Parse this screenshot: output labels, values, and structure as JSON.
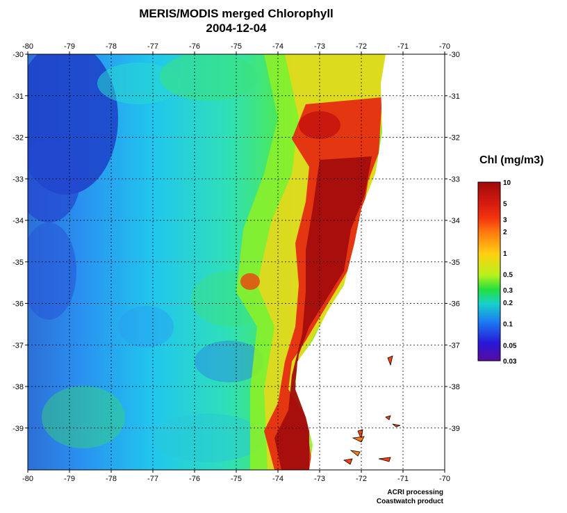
{
  "title": {
    "line1": "MERIS/MODIS merged Chlorophyll",
    "line2": "2004-12-04"
  },
  "map": {
    "lon_ticks": [
      "-80",
      "-79",
      "-78",
      "-77",
      "-76",
      "-75",
      "-74",
      "-73",
      "-72",
      "-71",
      "-70"
    ],
    "lat_ticks": [
      "-30",
      "-31",
      "-32",
      "-33",
      "-34",
      "-35",
      "-36",
      "-37",
      "-38",
      "-39"
    ],
    "lon_range": [
      -80,
      -70
    ],
    "lat_range": [
      -30,
      -40
    ],
    "grid": "dotted",
    "land_color": "#ffffff"
  },
  "colorbar": {
    "title": "Chl (mg/m3)",
    "labels": [
      "10",
      "5",
      "3",
      "2",
      "1",
      "0.5",
      "0.3",
      "0.2",
      "0.1",
      "0.05",
      "0.03"
    ],
    "colors": [
      "#9e0b0b",
      "#d81a10",
      "#f2340e",
      "#ff7a0f",
      "#ffcf11",
      "#b8f21a",
      "#23e03e",
      "#18d1c8",
      "#1c7cf2",
      "#2718d8",
      "#5a0a9e"
    ]
  },
  "credit": {
    "line1": "ACRI processing",
    "line2": "Coastwatch product"
  }
}
